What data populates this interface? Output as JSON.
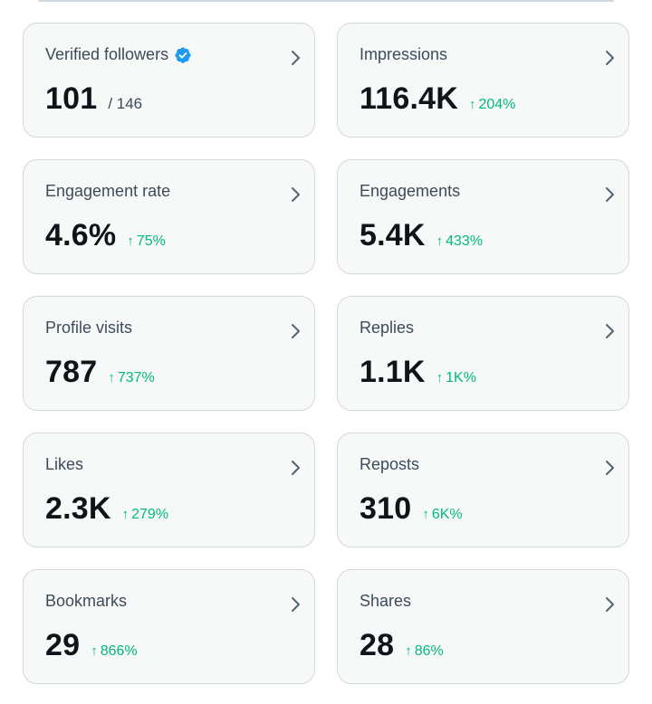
{
  "cards": [
    {
      "title": "Verified followers",
      "value": "101",
      "sub": "/ 146"
    },
    {
      "title": "Impressions",
      "value": "116.4K",
      "delta": "204%"
    },
    {
      "title": "Engagement rate",
      "value": "4.6%",
      "delta": "75%"
    },
    {
      "title": "Engagements",
      "value": "5.4K",
      "delta": "433%"
    },
    {
      "title": "Profile visits",
      "value": "787",
      "delta": "737%"
    },
    {
      "title": "Replies",
      "value": "1.1K",
      "delta": "1K%"
    },
    {
      "title": "Likes",
      "value": "2.3K",
      "delta": "279%"
    },
    {
      "title": "Reposts",
      "value": "310",
      "delta": "6K%"
    },
    {
      "title": "Bookmarks",
      "value": "29",
      "delta": "866%"
    },
    {
      "title": "Shares",
      "value": "28",
      "delta": "86%"
    }
  ],
  "icons": {
    "chevron": "chevron-right-icon",
    "verified": "verified-badge-icon",
    "arrow": "arrow-up-icon"
  },
  "colors": {
    "card_bg": "#f7f9f9",
    "card_border": "#cfd9de",
    "positive": "#00ba7c",
    "verified": "#1d9bf0",
    "chevron": "#536471"
  }
}
